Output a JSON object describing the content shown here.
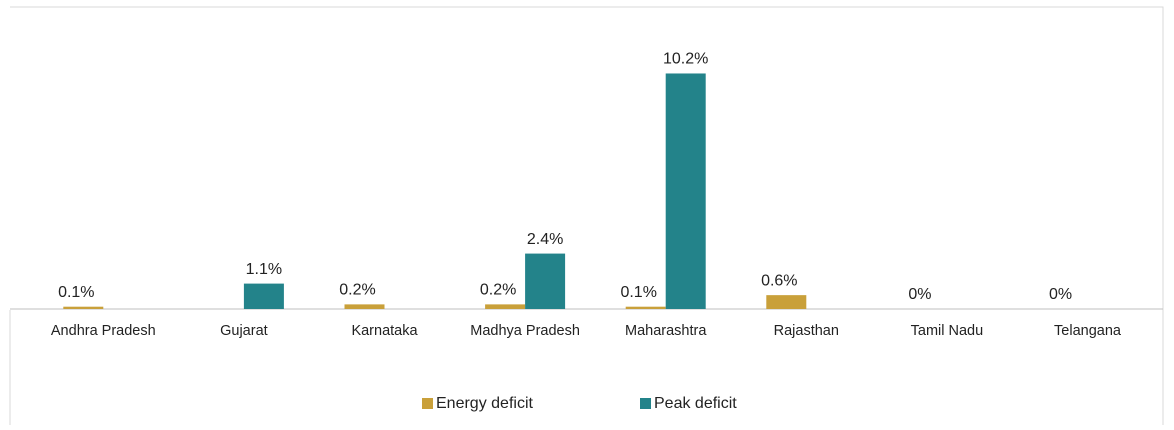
{
  "chart_data": {
    "type": "bar",
    "categories": [
      "Andhra Pradesh",
      "Gujarat",
      "Karnataka",
      "Madhya Pradesh",
      "Maharashtra",
      "Rajasthan",
      "Tamil Nadu",
      "Telangana"
    ],
    "series": [
      {
        "name": "Energy deficit",
        "color": "#c9a03a",
        "values": [
          0.1,
          null,
          0.2,
          0.2,
          0.1,
          0.6,
          0,
          0
        ],
        "value_labels": [
          "0.1%",
          null,
          "0.2%",
          "0.2%",
          "0.1%",
          "0.6%",
          "0%",
          "0%"
        ]
      },
      {
        "name": "Peak deficit",
        "color": "#23838a",
        "values": [
          null,
          1.1,
          null,
          2.4,
          10.2,
          null,
          null,
          null
        ],
        "value_labels": [
          null,
          "1.1%",
          null,
          "2.4%",
          "10.2%",
          null,
          null,
          null
        ]
      }
    ],
    "ylim": [
      0,
      11
    ],
    "legend": "bottom"
  }
}
